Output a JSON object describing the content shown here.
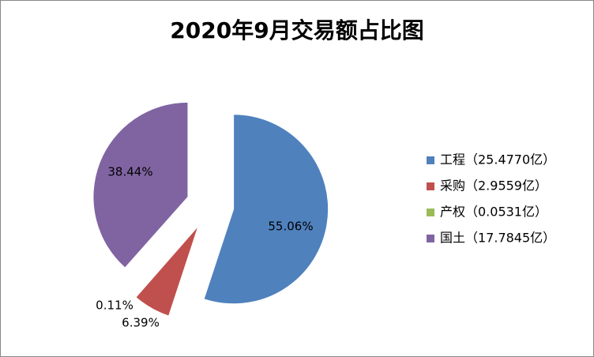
{
  "chart_data": {
    "type": "pie",
    "title": "2020年9月交易额占比图",
    "categories": [
      "工程（25.4770亿）",
      "采购（2.9559亿）",
      "产权（0.0531亿）",
      "国土（17.7845亿）"
    ],
    "values": [
      55.06,
      6.39,
      0.11,
      38.44
    ],
    "value_labels": [
      "55.06%",
      "6.39%",
      "0.11%",
      "38.44%"
    ],
    "colors": [
      "#4f81bd",
      "#c0504d",
      "#9bbb59",
      "#8064a2"
    ],
    "legend": "right"
  }
}
